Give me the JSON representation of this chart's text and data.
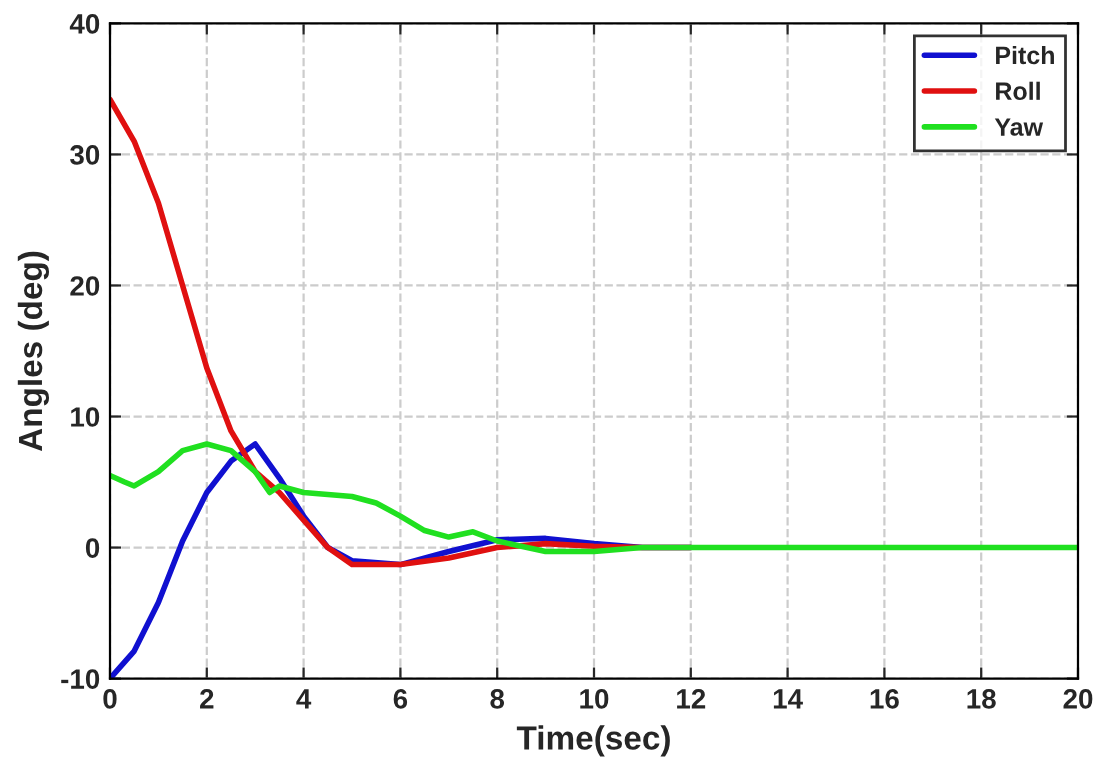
{
  "chart_data": {
    "type": "line",
    "xlabel": "Time(sec)",
    "ylabel": "Angles (deg)",
    "xlim": [
      0,
      20
    ],
    "ylim": [
      -10,
      40
    ],
    "xticks": [
      0,
      2,
      4,
      6,
      8,
      10,
      12,
      14,
      16,
      18,
      20
    ],
    "yticks": [
      -10,
      0,
      10,
      20,
      30,
      40
    ],
    "grid": true,
    "legend": "top right",
    "line_style": "solid",
    "series": [
      {
        "name": "Pitch",
        "color": "#1010d0",
        "x": [
          0,
          0.5,
          1,
          1.5,
          2,
          2.5,
          3,
          3.5,
          4,
          4.5,
          5,
          6,
          7,
          8,
          9,
          10,
          11,
          12
        ],
        "values": [
          -10,
          -7.9,
          -4.2,
          0.5,
          4.2,
          6.6,
          7.9,
          5.3,
          2.4,
          0,
          -1,
          -1.3,
          -0.3,
          0.6,
          0.7,
          0.3,
          0,
          0
        ]
      },
      {
        "name": "Roll",
        "color": "#e01010",
        "x": [
          0,
          0.5,
          1,
          1.5,
          2,
          2.5,
          3,
          3.5,
          4,
          4.5,
          5,
          6,
          7,
          8,
          9,
          10,
          11,
          12
        ],
        "values": [
          34.2,
          31,
          26.3,
          20,
          13.7,
          8.9,
          5.8,
          4.2,
          2.1,
          0,
          -1.3,
          -1.3,
          -0.8,
          0,
          0.3,
          0.1,
          0,
          0
        ]
      },
      {
        "name": "Yaw",
        "color": "#20e020",
        "x": [
          0,
          0.3,
          0.5,
          1,
          1.5,
          2,
          2.5,
          3,
          3.3,
          3.5,
          4,
          5,
          5.5,
          6,
          6.5,
          7,
          7.5,
          8,
          9,
          10,
          11,
          12,
          14,
          16,
          18,
          20
        ],
        "values": [
          5.5,
          5,
          4.7,
          5.8,
          7.4,
          7.9,
          7.4,
          5.8,
          4.2,
          4.7,
          4.2,
          3.9,
          3.4,
          2.4,
          1.3,
          0.8,
          1.2,
          0.5,
          -0.3,
          -0.3,
          0,
          0,
          0,
          0,
          0,
          0
        ]
      }
    ]
  }
}
